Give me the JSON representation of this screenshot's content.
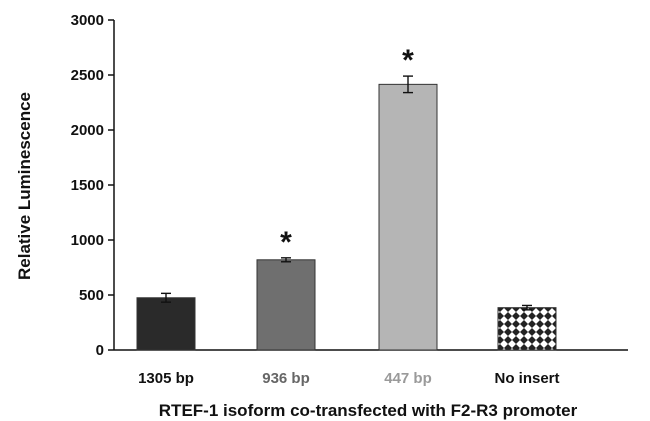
{
  "chart_data": {
    "type": "bar",
    "xlabel": "RTEF-1 isoform co-transfected with F2-R3 promoter",
    "ylabel": "Relative Luminescence",
    "ylim": [
      0,
      3000
    ],
    "y_ticks": [
      0,
      500,
      1000,
      1500,
      2000,
      2500,
      3000
    ],
    "grid": false,
    "categories": [
      "1305 bp",
      "936 bp",
      "447 bp",
      "No insert"
    ],
    "values": [
      475,
      820,
      2415,
      385
    ],
    "error": [
      40,
      18,
      75,
      20
    ],
    "significance": [
      "",
      "*",
      "*",
      ""
    ],
    "bar_colors": [
      "#2a2a2a",
      "#6f6f6f",
      "#b5b5b5",
      "pattern-diamond"
    ],
    "label_colors": [
      "#111111",
      "#666666",
      "#9a9a9a",
      "#111111"
    ]
  }
}
